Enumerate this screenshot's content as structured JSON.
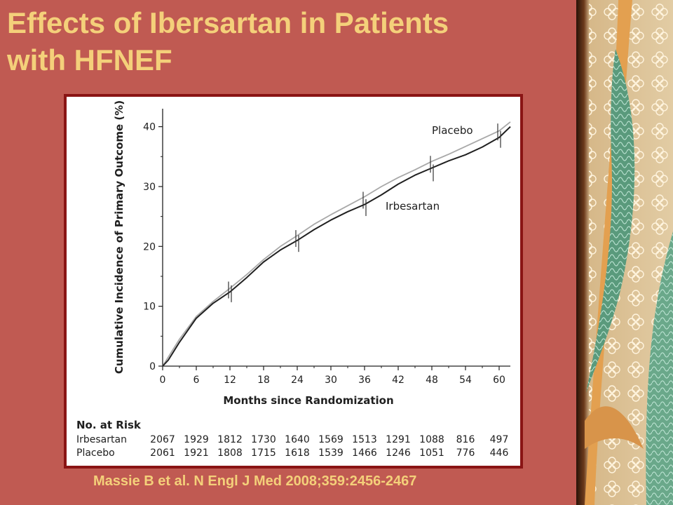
{
  "slide": {
    "title_lines": [
      "Effects of Ibersartan in Patients",
      "with HFNEF"
    ],
    "citation": "Massie B et al. N Engl J Med 2008;359:2456-2467"
  },
  "colors": {
    "background": "#c05a52",
    "title": "#f4d07a",
    "frame": "#8a1414",
    "placebo_line": "#a8a8a8",
    "irbesartan_line": "#202020"
  },
  "chart_data": {
    "type": "line",
    "xlabel": "Months since Randomization",
    "ylabel": "Cumulative Incidence of Primary Outcome (%)",
    "xlim": [
      0,
      62
    ],
    "ylim": [
      0,
      43
    ],
    "x_ticks": [
      "0",
      "6",
      "12",
      "18",
      "24",
      "30",
      "36",
      "42",
      "48",
      "54",
      "60"
    ],
    "y_ticks": [
      "0",
      "10",
      "20",
      "30",
      "40"
    ],
    "grid": false,
    "series": [
      {
        "name": "Placebo",
        "color": "#a8a8a8",
        "x": [
          0,
          1,
          3,
          6,
          9,
          12,
          15,
          18,
          21,
          24,
          27,
          30,
          33,
          36,
          39,
          42,
          45,
          48,
          51,
          54,
          57,
          60,
          62
        ],
        "y": [
          0,
          1.5,
          4.5,
          8.3,
          10.8,
          13.0,
          15.3,
          17.8,
          20.0,
          21.8,
          23.7,
          25.3,
          26.8,
          28.3,
          30.0,
          31.5,
          32.8,
          34.2,
          35.4,
          36.7,
          38.0,
          39.3,
          40.8
        ]
      },
      {
        "name": "Irbesartan",
        "color": "#202020",
        "x": [
          0,
          1,
          3,
          6,
          9,
          12,
          15,
          18,
          21,
          24,
          27,
          30,
          33,
          36,
          39,
          42,
          45,
          48,
          51,
          54,
          57,
          60,
          62
        ],
        "y": [
          0,
          1.0,
          4.0,
          8.0,
          10.5,
          12.4,
          14.8,
          17.4,
          19.4,
          21.0,
          22.8,
          24.4,
          25.8,
          27.0,
          28.6,
          30.4,
          31.9,
          33.1,
          34.3,
          35.3,
          36.6,
          38.2,
          40.0
        ]
      }
    ],
    "markers": {
      "x": [
        12,
        24,
        36,
        48,
        60
      ],
      "placebo_y": [
        12.6,
        21.2,
        27.6,
        33.6,
        39.0
      ],
      "irbesartan_y": [
        12.2,
        20.6,
        26.6,
        32.4,
        38.0
      ]
    },
    "risk_table": {
      "header": "No. at Risk",
      "rows": [
        {
          "label": "Irbesartan",
          "values": [
            "2067",
            "1929",
            "1812",
            "1730",
            "1640",
            "1569",
            "1513",
            "1291",
            "1088",
            "816",
            "497"
          ]
        },
        {
          "label": "Placebo",
          "values": [
            "2061",
            "1921",
            "1808",
            "1715",
            "1618",
            "1539",
            "1466",
            "1246",
            "1051",
            "776",
            "446"
          ]
        }
      ]
    }
  }
}
